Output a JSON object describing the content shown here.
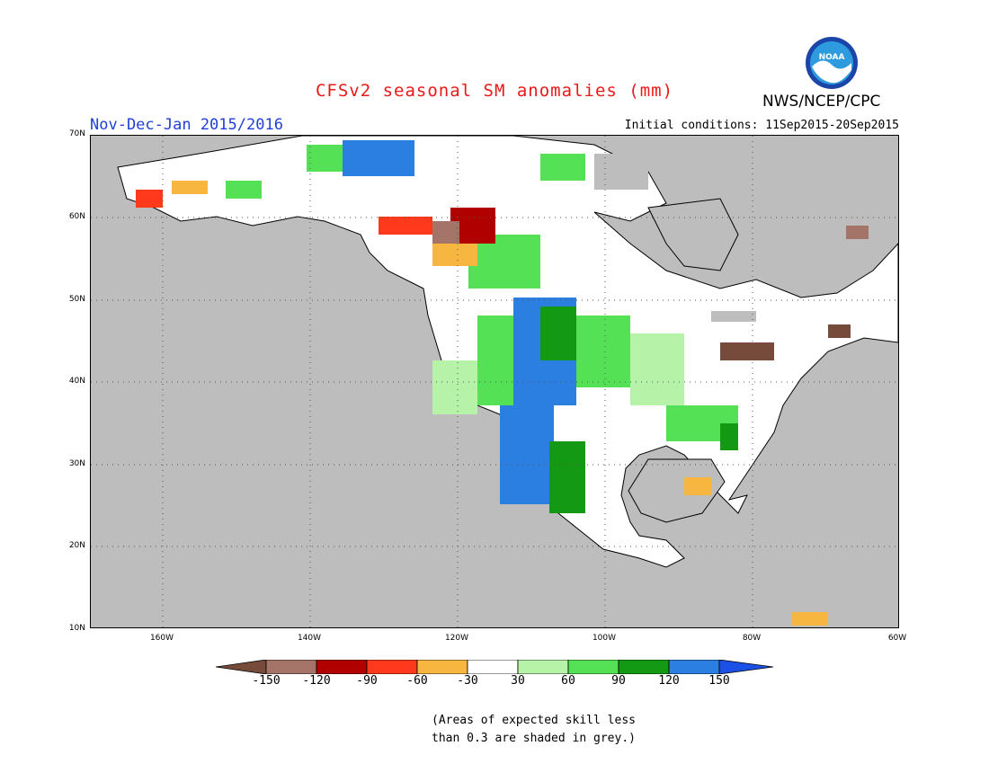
{
  "title": "CFSv2 seasonal SM anomalies (mm)",
  "agency": "NWS/NCEP/CPC",
  "logo_text": "NOAA",
  "period": "Nov-Dec-Jan 2015/2016",
  "initial_conditions": "Initial conditions: 11Sep2015-20Sep2015",
  "latitude_labels": [
    "70N",
    "60N",
    "50N",
    "40N",
    "30N",
    "20N",
    "10N"
  ],
  "longitude_labels": [
    "160W",
    "140W",
    "120W",
    "100W",
    "80W",
    "60W"
  ],
  "colorbar": {
    "labels": [
      "-150",
      "-120",
      "-90",
      "-60",
      "-30",
      "30",
      "60",
      "90",
      "120",
      "150"
    ],
    "colors": [
      "#774b3b",
      "#a47468",
      "#b10000",
      "#ff3a1c",
      "#f7b63f",
      "#ffffff",
      "#b6f3a8",
      "#55e155",
      "#139913",
      "#2a7fe0",
      "#1a50e6"
    ]
  },
  "note": {
    "line1": "(Areas of expected skill less",
    "line2": "than 0.3 are shaded in grey.)"
  },
  "colors": {
    "title": "#e8191a",
    "period": "#1f3fd6",
    "no_skill_grey": "#bdbdbd"
  }
}
